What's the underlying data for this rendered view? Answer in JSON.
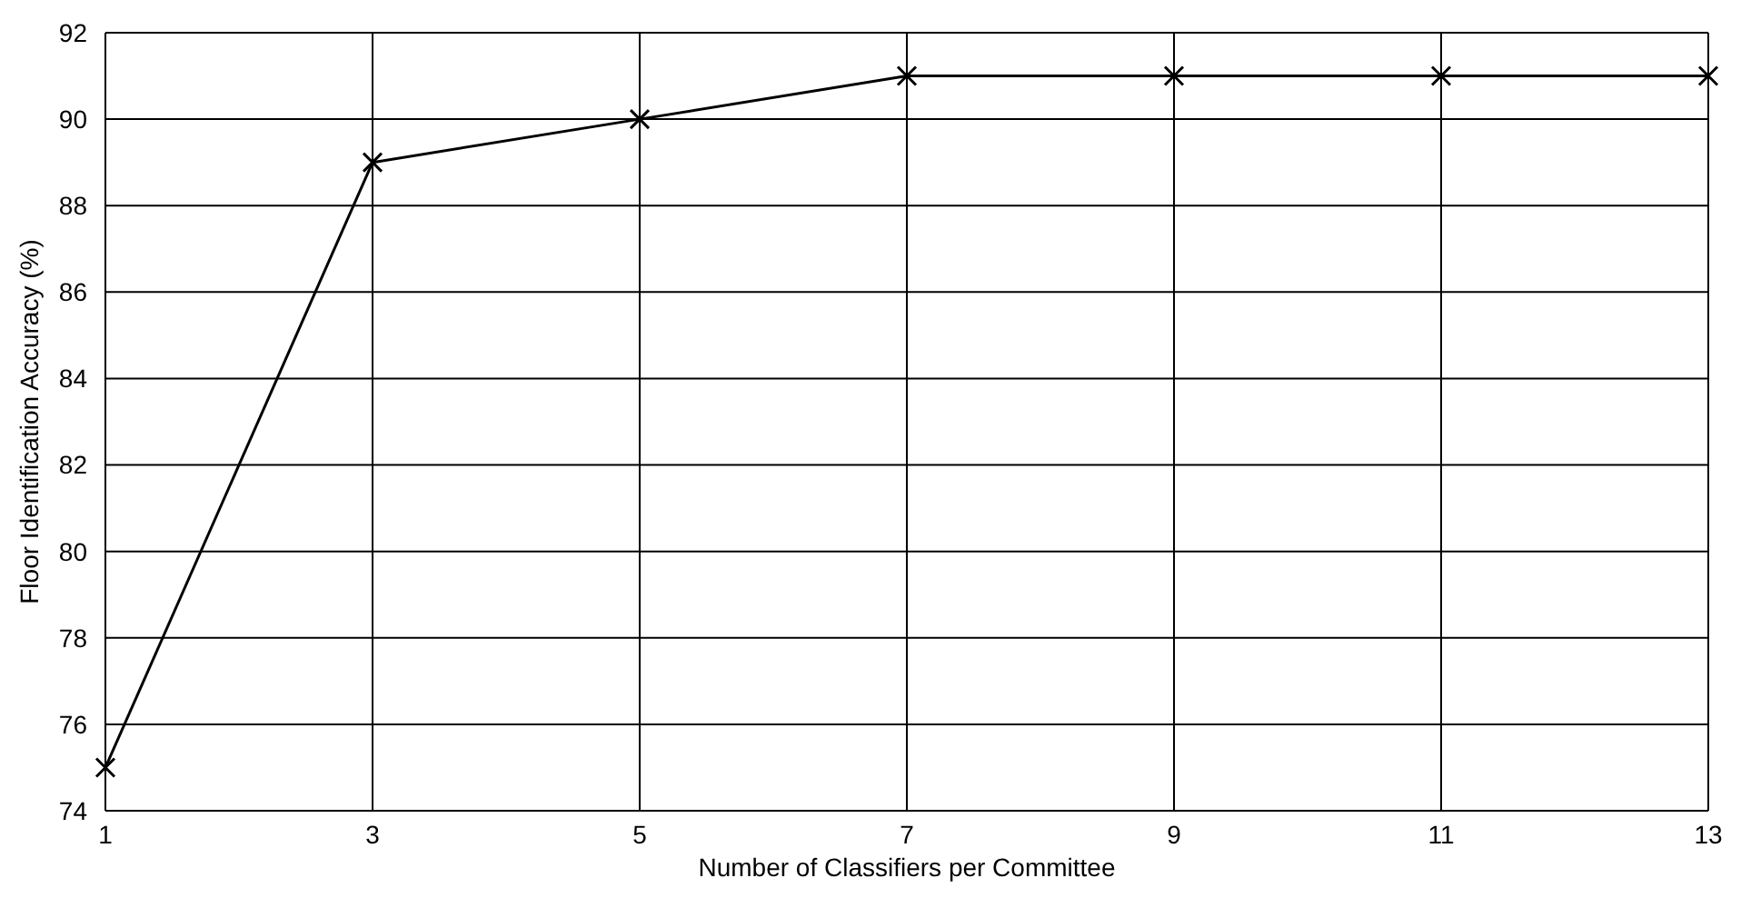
{
  "chart_data": {
    "type": "line",
    "xlabel": "Number of Classifiers per Committee",
    "ylabel": "Floor Identification Accuracy (%)",
    "x": [
      1,
      3,
      5,
      7,
      9,
      11,
      13
    ],
    "series": [
      {
        "color": "#000000",
        "values": [
          75,
          89,
          90,
          91,
          91,
          91,
          91
        ]
      }
    ],
    "xlim": [
      1,
      13
    ],
    "xticks": [
      1,
      3,
      5,
      7,
      9,
      11,
      13
    ],
    "ylim": [
      74,
      92
    ],
    "yticks": [
      74,
      76,
      78,
      80,
      82,
      84,
      86,
      88,
      90,
      92
    ],
    "grid": true,
    "marker": "cross",
    "line_style": "solid"
  }
}
